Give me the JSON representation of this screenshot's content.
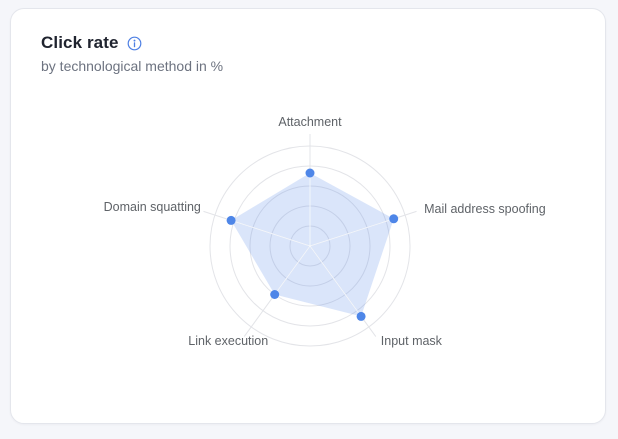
{
  "card": {
    "title": "Click rate",
    "subtitle": "by technological method in %"
  },
  "icons": {
    "info": "info-circle-icon"
  },
  "chart_data": {
    "type": "radar",
    "categories": [
      "Attachment",
      "Mail address spoofing",
      "Input mask",
      "Link execution",
      "Domain squatting"
    ],
    "values": [
      73,
      88,
      87,
      60,
      83
    ],
    "unit": "%",
    "max": 100,
    "rings": 5,
    "grid_shape": "circle",
    "legend": false,
    "title": "Click rate",
    "subtitle": "by technological method in %"
  },
  "colors": {
    "page_bg": "#f5f6fa",
    "card_bg": "#ffffff",
    "card_border": "#e4e6ec",
    "title_text": "#20242f",
    "subtitle_text": "#6d7380",
    "grid_line": "#e3e4e8",
    "axis_overlay_line": "rgba(255,255,255,0.8)",
    "axis_label": "#5f6368",
    "series_fill": "rgba(78,134,232,0.21)",
    "series_dot": "#4e86e8",
    "info_icon": "#4d7fe3"
  }
}
